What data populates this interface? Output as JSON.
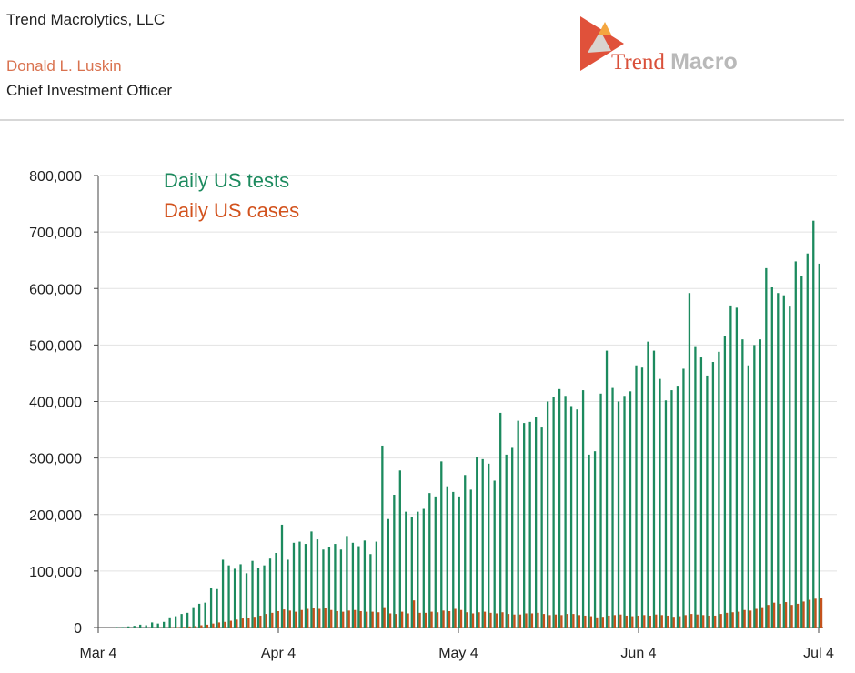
{
  "header": {
    "company": "Trend Macrolytics, LLC",
    "author": "Donald L. Luskin",
    "role": "Chief Investment Officer",
    "logo_word1": "Trend",
    "logo_word2": "Macro"
  },
  "colors": {
    "tests": "#1c8a5e",
    "cases": "#c4521c",
    "axis": "#444444",
    "grid": "#e2e2e2"
  },
  "chart_data": {
    "type": "bar",
    "title": "",
    "xlabel": "",
    "ylabel": "",
    "ylim": [
      0,
      800000
    ],
    "yticks": [
      0,
      100000,
      200000,
      300000,
      400000,
      500000,
      600000,
      700000,
      800000
    ],
    "ytick_labels": [
      "0",
      "100,000",
      "200,000",
      "300,000",
      "400,000",
      "500,000",
      "600,000",
      "700,000",
      "800,000"
    ],
    "xticks": [
      "Mar 4",
      "Apr 4",
      "May 4",
      "Jun 4",
      "Jul 4"
    ],
    "grid": true,
    "legend_position": "top-left",
    "x_start": "Mar 4",
    "x_end": "Jul 4",
    "series": [
      {
        "name": "Daily US tests",
        "values": [
          0,
          0,
          0,
          1000,
          1000,
          2000,
          3000,
          5000,
          4000,
          9000,
          7000,
          10000,
          18000,
          20000,
          24000,
          26000,
          36000,
          42000,
          44000,
          70000,
          68000,
          120000,
          110000,
          104000,
          112000,
          96000,
          118000,
          106000,
          110000,
          122000,
          132000,
          182000,
          120000,
          150000,
          152000,
          148000,
          170000,
          156000,
          138000,
          142000,
          148000,
          138000,
          162000,
          150000,
          144000,
          154000,
          130000,
          152000,
          322000,
          192000,
          235000,
          278000,
          205000,
          196000,
          205000,
          210000,
          238000,
          232000,
          294000,
          250000,
          240000,
          232000,
          270000,
          244000,
          302000,
          298000,
          290000,
          260000,
          380000,
          306000,
          318000,
          366000,
          362000,
          364000,
          372000,
          354000,
          400000,
          408000,
          422000,
          410000,
          392000,
          386000,
          420000,
          306000,
          312000,
          414000,
          490000,
          424000,
          400000,
          410000,
          418000,
          464000,
          460000,
          506000,
          490000,
          440000,
          402000,
          420000,
          428000,
          458000,
          592000,
          498000,
          478000,
          446000,
          470000,
          488000,
          516000,
          570000,
          566000,
          510000,
          464000,
          500000,
          510000,
          636000,
          602000,
          592000,
          588000,
          568000,
          648000,
          622000,
          662000,
          720000,
          644000
        ]
      },
      {
        "name": "Daily US cases",
        "values": [
          0,
          0,
          0,
          0,
          0,
          0,
          0,
          0,
          0,
          100,
          200,
          300,
          500,
          800,
          1200,
          1800,
          2500,
          4000,
          5000,
          7000,
          9000,
          10000,
          12000,
          14000,
          16000,
          17000,
          19000,
          21000,
          24000,
          26000,
          29000,
          32000,
          30000,
          28000,
          31000,
          33000,
          34000,
          33000,
          35000,
          31000,
          29000,
          28000,
          30000,
          31000,
          29000,
          28000,
          28000,
          27000,
          36000,
          25000,
          24000,
          28000,
          25000,
          48000,
          26000,
          26000,
          28000,
          27000,
          30000,
          29000,
          33000,
          31000,
          27000,
          25000,
          27000,
          28000,
          26000,
          25000,
          27000,
          24000,
          23000,
          23000,
          25000,
          25000,
          26000,
          24000,
          22000,
          23000,
          22000,
          24000,
          24000,
          22000,
          21000,
          20000,
          18000,
          19000,
          21000,
          22000,
          23000,
          21000,
          20000,
          21000,
          22000,
          21000,
          23000,
          22000,
          21000,
          19000,
          20000,
          22000,
          24000,
          23000,
          22000,
          21000,
          21000,
          24000,
          26000,
          27000,
          28000,
          31000,
          30000,
          33000,
          36000,
          40000,
          44000,
          42000,
          45000,
          40000,
          42000,
          46000,
          49000,
          51000,
          52000
        ]
      }
    ]
  }
}
